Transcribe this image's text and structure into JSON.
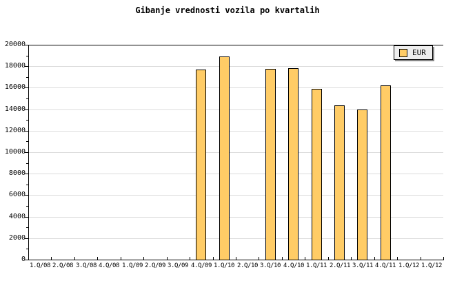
{
  "chart_data": {
    "type": "bar",
    "title": "Gibanje vrednosti vozila po kvartalih",
    "categories": [
      "1.Q/08",
      "2.Q/08",
      "3.Q/08",
      "4.Q/08",
      "1.Q/09",
      "2.Q/09",
      "3.Q/09",
      "4.Q/09",
      "1.Q/10",
      "2.Q/10",
      "3.Q/10",
      "4.Q/10",
      "1.Q/11",
      "2.Q/11",
      "3.Q/11",
      "4.Q/11",
      "1.Q/12",
      "1.Q/12"
    ],
    "series": [
      {
        "name": "EUR",
        "values": [
          null,
          null,
          null,
          null,
          null,
          null,
          null,
          17700,
          18900,
          null,
          17780,
          17850,
          15900,
          14350,
          13950,
          16250,
          null,
          null
        ]
      }
    ],
    "xlabel": "",
    "ylabel": "",
    "ylim": [
      0,
      20000
    ],
    "y_tick_step": 2000,
    "y_minor_tick_step": 1000,
    "y_tick_labels": [
      "0",
      "2000",
      "4000",
      "6000",
      "8000",
      "10000",
      "12000",
      "14000",
      "16000",
      "18000",
      "20000"
    ],
    "grid": "horizontal-major",
    "legend_position": "top-right",
    "colors": {
      "bar_fill": "#ffcc66",
      "bar_border": "#000000",
      "grid": "#dcdcdc",
      "axis": "#000000",
      "legend_bg": "#eeeeee",
      "legend_shadow": "#888888",
      "text": "#000000",
      "background": "#ffffff"
    }
  }
}
